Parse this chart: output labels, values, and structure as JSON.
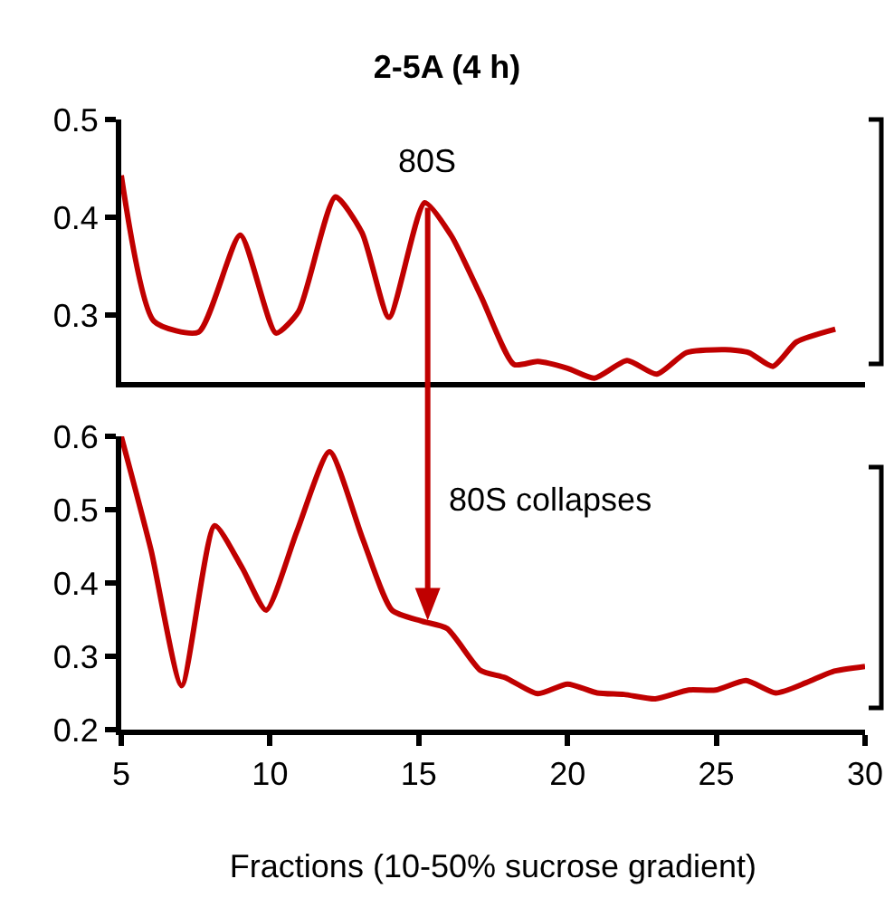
{
  "chart_data": [
    {
      "type": "line",
      "title": "2-5A (4 h)",
      "x": [
        5,
        6.1,
        7.6,
        9.0,
        10.2,
        10.96,
        12.2,
        13.1,
        14.0,
        15.2,
        16.1,
        17.1,
        18.2,
        19.0,
        20.0,
        20.9,
        22.0,
        23.0,
        24.0,
        25.3,
        26.1,
        26.9,
        27.7,
        29.0
      ],
      "series": [
        {
          "color": "#c00000",
          "values": [
            0.443,
            0.294,
            0.283,
            0.382,
            0.282,
            0.304,
            0.421,
            0.384,
            0.298,
            0.415,
            0.381,
            0.319,
            0.25,
            0.253,
            0.246,
            0.236,
            0.254,
            0.24,
            0.262,
            0.265,
            0.262,
            0.248,
            0.273,
            0.286
          ]
        }
      ],
      "xlim": [
        5,
        30
      ],
      "ylim": [
        0.232,
        0.5
      ],
      "yticks": [
        0.3,
        0.4,
        0.5
      ],
      "tick_labels": "y",
      "line_style": "solid",
      "annotations": [
        {
          "text": "80S",
          "x": 15.3,
          "y": 0.41
        }
      ]
    },
    {
      "type": "line",
      "xlabel": "Fractions (10-50% sucrose gradient)",
      "x": [
        5,
        6.0,
        7.03,
        8.14,
        9.06,
        9.87,
        10.9,
        12.0,
        13.1,
        14.1,
        15.1,
        15.95,
        17.07,
        17.9,
        19.0,
        20.0,
        21.0,
        21.9,
        22.95,
        24.07,
        24.98,
        26.0,
        27.0,
        28.02,
        28.9,
        30
      ],
      "series": [
        {
          "color": "#c00000",
          "values": [
            0.6,
            0.445,
            0.26,
            0.478,
            0.421,
            0.363,
            0.47,
            0.579,
            0.462,
            0.363,
            0.348,
            0.338,
            0.281,
            0.271,
            0.249,
            0.262,
            0.25,
            0.248,
            0.242,
            0.254,
            0.254,
            0.267,
            0.25,
            0.264,
            0.279,
            0.286
          ]
        }
      ],
      "xlim": [
        5,
        30
      ],
      "xticks": [
        5,
        10,
        15,
        20,
        25,
        30
      ],
      "ylim": [
        0.2,
        0.6
      ],
      "yticks": [
        0.2,
        0.3,
        0.4,
        0.5,
        0.6
      ],
      "line_style": "solid",
      "annotations": [
        "80S collapses"
      ]
    }
  ]
}
